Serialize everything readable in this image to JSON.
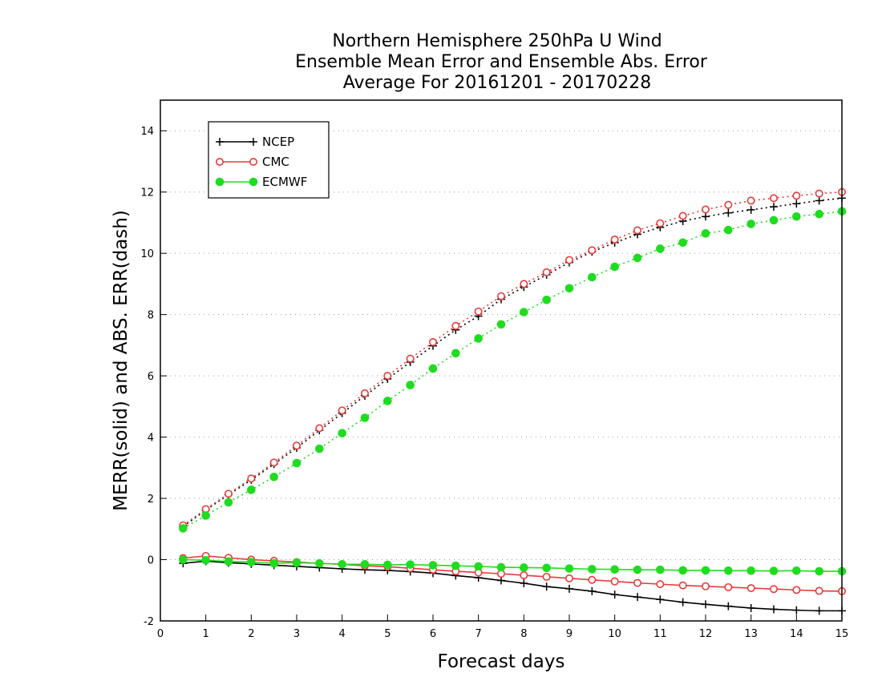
{
  "chart_data": {
    "type": "line",
    "title_lines": [
      "Northern Hemisphere 250hPa U Wind",
      "Ensemble Mean Error and Ensemble Abs. Error",
      "Average For 20161201 - 20170228"
    ],
    "xlabel": "Forecast days",
    "ylabel": "MERR(solid) and ABS. ERR(dash)",
    "xlim": [
      0,
      15
    ],
    "ylim": [
      -2,
      15
    ],
    "xticks": [
      "0",
      "1",
      "2",
      "3",
      "4",
      "5",
      "6",
      "7",
      "8",
      "9",
      "10",
      "11",
      "12",
      "13",
      "14",
      "15"
    ],
    "yticks": [
      "-2",
      "0",
      "2",
      "4",
      "6",
      "8",
      "10",
      "12",
      "14"
    ],
    "grid": true,
    "legend_position": "top-left",
    "colors": {
      "NCEP": "#000000",
      "CMC": "#e83a3a",
      "ECMWF": "#1fdc1f"
    },
    "x": [
      0.5,
      1,
      1.5,
      2,
      2.5,
      3,
      3.5,
      4,
      4.5,
      5,
      5.5,
      6,
      6.5,
      7,
      7.5,
      8,
      8.5,
      9,
      9.5,
      10,
      10.5,
      11,
      11.5,
      12,
      12.5,
      13,
      13.5,
      14,
      14.5,
      15
    ],
    "series": [
      {
        "name": "NCEP",
        "kind": "mean_error",
        "style": "solid",
        "marker": "plus",
        "values": [
          -0.12,
          -0.05,
          -0.1,
          -0.14,
          -0.18,
          -0.22,
          -0.26,
          -0.3,
          -0.33,
          -0.35,
          -0.39,
          -0.44,
          -0.52,
          -0.59,
          -0.68,
          -0.77,
          -0.88,
          -0.95,
          -1.03,
          -1.14,
          -1.22,
          -1.3,
          -1.39,
          -1.46,
          -1.52,
          -1.58,
          -1.62,
          -1.65,
          -1.67,
          -1.67
        ]
      },
      {
        "name": "CMC",
        "kind": "mean_error",
        "style": "solid",
        "marker": "open-circle",
        "values": [
          0.05,
          0.12,
          0.06,
          0.0,
          -0.04,
          -0.08,
          -0.12,
          -0.15,
          -0.2,
          -0.23,
          -0.28,
          -0.33,
          -0.38,
          -0.42,
          -0.46,
          -0.51,
          -0.56,
          -0.61,
          -0.66,
          -0.71,
          -0.76,
          -0.8,
          -0.84,
          -0.87,
          -0.9,
          -0.93,
          -0.96,
          -0.99,
          -1.02,
          -1.03
        ]
      },
      {
        "name": "ECMWF",
        "kind": "mean_error",
        "style": "solid",
        "marker": "filled-circle",
        "values": [
          0.0,
          -0.02,
          -0.06,
          -0.08,
          -0.12,
          -0.1,
          -0.12,
          -0.15,
          -0.15,
          -0.17,
          -0.16,
          -0.18,
          -0.2,
          -0.22,
          -0.25,
          -0.26,
          -0.27,
          -0.29,
          -0.31,
          -0.32,
          -0.33,
          -0.33,
          -0.35,
          -0.35,
          -0.36,
          -0.36,
          -0.37,
          -0.36,
          -0.38,
          -0.38
        ]
      },
      {
        "name": "NCEP",
        "kind": "abs_error",
        "style": "dash",
        "marker": "plus",
        "values": [
          1.08,
          1.62,
          2.12,
          2.6,
          3.12,
          3.65,
          4.22,
          4.78,
          5.35,
          5.9,
          6.45,
          6.98,
          7.5,
          7.95,
          8.5,
          8.9,
          9.3,
          9.7,
          10.05,
          10.35,
          10.62,
          10.85,
          11.05,
          11.2,
          11.32,
          11.42,
          11.52,
          11.62,
          11.72,
          11.8
        ]
      },
      {
        "name": "CMC",
        "kind": "abs_error",
        "style": "dash",
        "marker": "open-circle",
        "values": [
          1.12,
          1.65,
          2.15,
          2.65,
          3.17,
          3.72,
          4.29,
          4.87,
          5.43,
          6.0,
          6.56,
          7.1,
          7.63,
          8.1,
          8.6,
          9.0,
          9.38,
          9.78,
          10.1,
          10.45,
          10.75,
          10.98,
          11.22,
          11.43,
          11.58,
          11.72,
          11.8,
          11.88,
          11.95,
          12.0
        ]
      },
      {
        "name": "ECMWF",
        "kind": "abs_error",
        "style": "dash",
        "marker": "filled-circle",
        "values": [
          1.02,
          1.44,
          1.87,
          2.28,
          2.7,
          3.15,
          3.62,
          4.13,
          4.63,
          5.18,
          5.7,
          6.24,
          6.74,
          7.22,
          7.68,
          8.08,
          8.48,
          8.86,
          9.22,
          9.56,
          9.85,
          10.15,
          10.35,
          10.65,
          10.76,
          10.96,
          11.08,
          11.2,
          11.28,
          11.37
        ]
      }
    ]
  }
}
